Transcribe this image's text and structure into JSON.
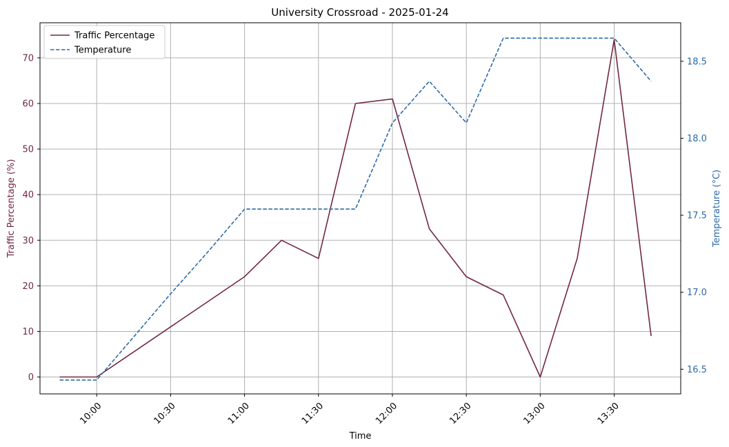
{
  "chart_data": {
    "type": "line",
    "title": "University Crossroad - 2025-01-24",
    "xlabel": "Time",
    "ylabel_left": "Traffic Percentage (%)",
    "ylabel_right": "Temperature (°C)",
    "x": [
      "09:45",
      "10:00",
      "10:15",
      "10:30",
      "10:45",
      "11:00",
      "11:15",
      "11:30",
      "11:45",
      "12:00",
      "12:15",
      "12:30",
      "12:45",
      "13:00",
      "13:15",
      "13:30",
      "13:45"
    ],
    "x_ticks": [
      "10:00",
      "10:30",
      "11:00",
      "11:30",
      "12:00",
      "12:30",
      "13:00",
      "13:30"
    ],
    "xlim": [
      "09:37",
      "13:57"
    ],
    "left_axis": {
      "ylim": [
        -3.7,
        77.7
      ],
      "ticks": [
        0,
        10,
        20,
        30,
        40,
        50,
        60,
        70
      ]
    },
    "right_axis": {
      "ylim": [
        16.34,
        18.75
      ],
      "ticks": [
        16.5,
        17.0,
        17.5,
        18.0,
        18.5
      ],
      "tick_labels": [
        "16.5",
        "17.0",
        "17.5",
        "18.0",
        "18.5"
      ]
    },
    "grid": true,
    "legend_position": "top-left",
    "series": [
      {
        "name": "Traffic Percentage",
        "axis": "left",
        "style": "solid",
        "color": "#722640",
        "values": [
          0,
          0,
          5.5,
          11,
          16.5,
          22,
          30,
          26,
          60,
          61,
          32.5,
          22,
          18,
          0,
          26,
          74,
          9
        ]
      },
      {
        "name": "Temperature",
        "axis": "right",
        "style": "dashed",
        "color": "#2c6aa8",
        "values": [
          16.43,
          16.43,
          16.71,
          16.99,
          17.26,
          17.54,
          17.54,
          17.54,
          17.54,
          18.1,
          18.37,
          18.1,
          18.65,
          18.65,
          18.65,
          18.65,
          18.37
        ]
      }
    ]
  }
}
